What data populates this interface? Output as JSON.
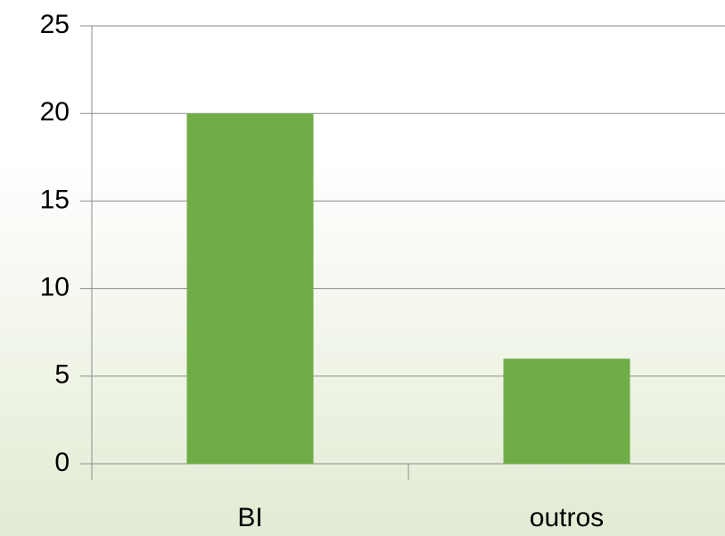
{
  "chart_data": {
    "type": "bar",
    "categories": [
      "BI",
      "outros"
    ],
    "values": [
      20,
      6
    ],
    "color": "#70ad47",
    "ylim": [
      0,
      25
    ],
    "yticks": [
      0,
      5,
      10,
      15,
      20,
      25
    ],
    "grid": true
  }
}
